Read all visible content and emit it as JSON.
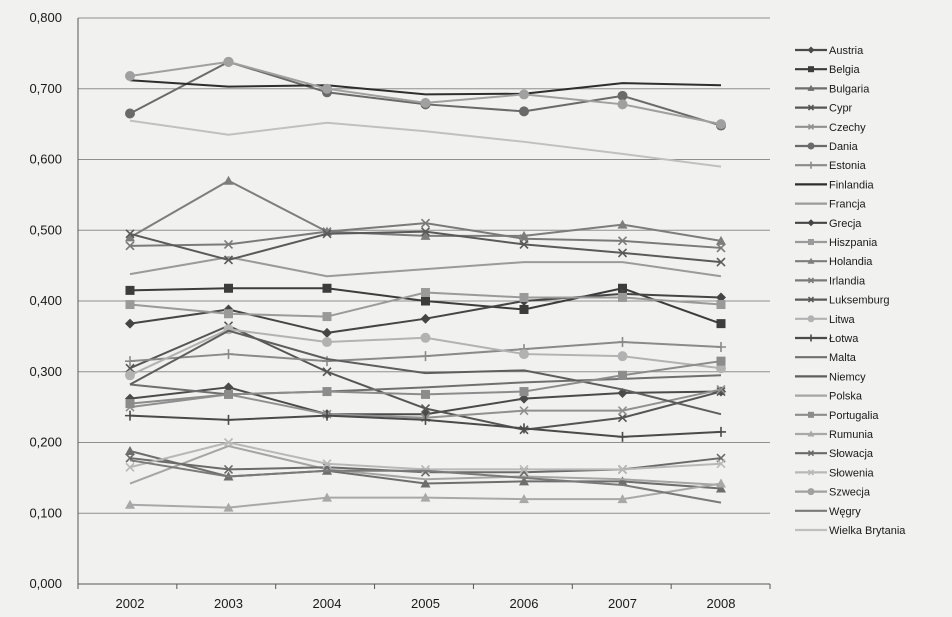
{
  "chart_data": {
    "type": "line",
    "title": "",
    "xlabel": "",
    "ylabel": "",
    "categories": [
      "2002",
      "2003",
      "2004",
      "2005",
      "2006",
      "2007",
      "2008"
    ],
    "ylim": [
      0,
      0.8
    ],
    "yticks": [
      0,
      0.1,
      0.2,
      0.3,
      0.4,
      0.5,
      0.6,
      0.7,
      0.8
    ],
    "ytick_labels": [
      "0,000",
      "0,100",
      "0,200",
      "0,300",
      "0,400",
      "0,500",
      "0,600",
      "0,700",
      "0,800"
    ],
    "grid": true,
    "legend_position": "right",
    "series": [
      {
        "name": "Austria",
        "marker": "diamond",
        "color": "#4a4a4a",
        "values": [
          0.262,
          0.278,
          0.24,
          0.24,
          0.262,
          0.27,
          0.272
        ]
      },
      {
        "name": "Belgia",
        "marker": "square",
        "color": "#3c3c3c",
        "values": [
          0.415,
          0.418,
          0.418,
          0.4,
          0.388,
          0.418,
          0.368
        ]
      },
      {
        "name": "Bulgaria",
        "marker": "triangle",
        "color": "#6e6e6e",
        "values": [
          0.188,
          0.152,
          0.16,
          0.142,
          0.145,
          0.145,
          0.135
        ]
      },
      {
        "name": "Cypr",
        "marker": "x",
        "color": "#555555",
        "values": [
          0.305,
          0.365,
          0.3,
          0.248,
          0.218,
          0.235,
          0.272
        ]
      },
      {
        "name": "Czechy",
        "marker": "x",
        "color": "#909090",
        "values": [
          0.25,
          0.268,
          0.24,
          0.235,
          0.245,
          0.245,
          0.275
        ]
      },
      {
        "name": "Dania",
        "marker": "circle",
        "color": "#6a6a6a",
        "values": [
          0.665,
          0.738,
          0.695,
          0.678,
          0.668,
          0.69,
          0.648
        ]
      },
      {
        "name": "Estonia",
        "marker": "plus",
        "color": "#8a8a8a",
        "values": [
          0.315,
          0.325,
          0.315,
          0.322,
          0.332,
          0.342,
          0.335
        ]
      },
      {
        "name": "Finlandia",
        "marker": "none",
        "color": "#2e2e2e",
        "values": [
          0.712,
          0.703,
          0.705,
          0.692,
          0.693,
          0.708,
          0.705
        ]
      },
      {
        "name": "Francja",
        "marker": "none",
        "color": "#9a9a9a",
        "values": [
          0.438,
          0.462,
          0.435,
          0.445,
          0.455,
          0.455,
          0.435
        ]
      },
      {
        "name": "Grecja",
        "marker": "diamond",
        "color": "#454545",
        "values": [
          0.368,
          0.388,
          0.355,
          0.375,
          0.4,
          0.41,
          0.405
        ]
      },
      {
        "name": "Hiszpania",
        "marker": "square",
        "color": "#9a9a9a",
        "values": [
          0.395,
          0.382,
          0.378,
          0.412,
          0.405,
          0.405,
          0.395
        ]
      },
      {
        "name": "Holandia",
        "marker": "triangle",
        "color": "#7d7d7d",
        "values": [
          0.49,
          0.57,
          0.498,
          0.492,
          0.492,
          0.508,
          0.485
        ]
      },
      {
        "name": "Irlandia",
        "marker": "x",
        "color": "#7a7a7a",
        "values": [
          0.478,
          0.48,
          0.498,
          0.51,
          0.488,
          0.485,
          0.475
        ]
      },
      {
        "name": "Luksemburg",
        "marker": "x",
        "color": "#5a5a5a",
        "values": [
          0.495,
          0.458,
          0.495,
          0.498,
          0.48,
          0.468,
          0.455
        ]
      },
      {
        "name": "Litwa",
        "marker": "circle",
        "color": "#b2b2b2",
        "values": [
          0.295,
          0.36,
          0.342,
          0.348,
          0.325,
          0.322,
          0.305
        ]
      },
      {
        "name": "Łotwa",
        "marker": "plus",
        "color": "#4a4a4a",
        "values": [
          0.238,
          0.232,
          0.238,
          0.232,
          0.22,
          0.208,
          0.215
        ]
      },
      {
        "name": "Malta",
        "marker": "none",
        "color": "#6f6f6f",
        "values": [
          0.282,
          0.268,
          0.272,
          0.278,
          0.285,
          0.29,
          0.295
        ]
      },
      {
        "name": "Niemcy",
        "marker": "none",
        "color": "#5e5e5e",
        "values": [
          0.282,
          0.358,
          0.318,
          0.298,
          0.302,
          0.275,
          0.24
        ]
      },
      {
        "name": "Polska",
        "marker": "none",
        "color": "#a5a5a5",
        "values": [
          0.142,
          0.195,
          0.162,
          0.148,
          0.152,
          0.148,
          0.14
        ]
      },
      {
        "name": "Portugalia",
        "marker": "square",
        "color": "#8c8c8c",
        "values": [
          0.255,
          0.268,
          0.272,
          0.268,
          0.272,
          0.295,
          0.315
        ]
      },
      {
        "name": "Rumunia",
        "marker": "triangle",
        "color": "#a8a8a8",
        "values": [
          0.112,
          0.108,
          0.122,
          0.122,
          0.12,
          0.12,
          0.142
        ]
      },
      {
        "name": "Słowacja",
        "marker": "x",
        "color": "#6a6a6a",
        "values": [
          0.178,
          0.162,
          0.165,
          0.158,
          0.158,
          0.162,
          0.178
        ]
      },
      {
        "name": "Słowenia",
        "marker": "x",
        "color": "#b8b8b8",
        "values": [
          0.165,
          0.2,
          0.17,
          0.162,
          0.162,
          0.162,
          0.17
        ]
      },
      {
        "name": "Szwecja",
        "marker": "circle",
        "color": "#a0a0a0",
        "values": [
          0.718,
          0.738,
          0.7,
          0.68,
          0.692,
          0.678,
          0.65
        ]
      },
      {
        "name": "Węgry",
        "marker": "none",
        "color": "#7a7a7a",
        "values": [
          0.175,
          0.152,
          0.16,
          0.16,
          0.15,
          0.14,
          0.115
        ]
      },
      {
        "name": "Wielka Brytania",
        "marker": "none",
        "color": "#c0c0c0",
        "values": [
          0.655,
          0.635,
          0.652,
          0.64,
          0.625,
          0.608,
          0.59
        ]
      }
    ]
  }
}
